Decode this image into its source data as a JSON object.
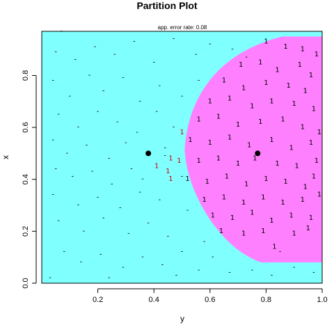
{
  "chart_data": {
    "type": "scatter",
    "title": "Partition Plot",
    "subtitle": "app. error rate: 0.08",
    "xlabel": "y",
    "ylabel": "x",
    "xlim": [
      0.0,
      1.0
    ],
    "ylim": [
      0.0,
      0.97
    ],
    "xticks": [
      0.2,
      0.4,
      0.6,
      0.8,
      1.0
    ],
    "xtick_labels": [
      "0.2",
      "0.4",
      "0.6",
      "0.8",
      "1.0"
    ],
    "yticks": [
      0.0,
      0.2,
      0.4,
      0.6,
      0.8
    ],
    "ytick_labels": [
      "0.0",
      "0.2",
      "0.4",
      "0.6",
      "0.8"
    ],
    "grid": false,
    "legend": "none",
    "regions": [
      {
        "class": "-",
        "color": "#80ffff"
      },
      {
        "class": "1",
        "color": "#ff80ff"
      }
    ],
    "class_one_region_bounds": {
      "y_min": 0.51,
      "y_max": 1.0,
      "x_min": 0.08,
      "x_max": 0.95
    },
    "class_means": [
      {
        "class": "-",
        "y": 0.38,
        "x": 0.5
      },
      {
        "class": "1",
        "y": 0.77,
        "x": 0.5
      }
    ],
    "misclassified_color": "#cc0000",
    "points": [
      {
        "y": 0.07,
        "x": 0.97,
        "c": "-"
      },
      {
        "y": 0.05,
        "x": 0.89,
        "c": "-"
      },
      {
        "y": 0.12,
        "x": 0.86,
        "c": "-"
      },
      {
        "y": 0.19,
        "x": 0.91,
        "c": "-"
      },
      {
        "y": 0.26,
        "x": 0.88,
        "c": "-"
      },
      {
        "y": 0.33,
        "x": 0.93,
        "c": "-"
      },
      {
        "y": 0.4,
        "x": 0.85,
        "c": "-"
      },
      {
        "y": 0.47,
        "x": 0.94,
        "c": "-"
      },
      {
        "y": 0.55,
        "x": 0.88,
        "c": "-"
      },
      {
        "y": 0.6,
        "x": 0.92,
        "c": "-"
      },
      {
        "y": 0.68,
        "x": 0.9,
        "c": "-"
      },
      {
        "y": 0.73,
        "x": 0.87,
        "c": "-"
      },
      {
        "y": 0.04,
        "x": 0.78,
        "c": "-"
      },
      {
        "y": 0.1,
        "x": 0.72,
        "c": "-"
      },
      {
        "y": 0.17,
        "x": 0.8,
        "c": "-"
      },
      {
        "y": 0.22,
        "x": 0.74,
        "c": "-"
      },
      {
        "y": 0.29,
        "x": 0.79,
        "c": "-"
      },
      {
        "y": 0.35,
        "x": 0.7,
        "c": "-"
      },
      {
        "y": 0.42,
        "x": 0.76,
        "c": "-"
      },
      {
        "y": 0.5,
        "x": 0.72,
        "c": "-"
      },
      {
        "y": 0.56,
        "x": 0.78,
        "c": "-"
      },
      {
        "y": 0.06,
        "x": 0.65,
        "c": "-"
      },
      {
        "y": 0.13,
        "x": 0.6,
        "c": "-"
      },
      {
        "y": 0.2,
        "x": 0.66,
        "c": "-"
      },
      {
        "y": 0.27,
        "x": 0.62,
        "c": "-"
      },
      {
        "y": 0.34,
        "x": 0.58,
        "c": "-"
      },
      {
        "y": 0.41,
        "x": 0.66,
        "c": "-"
      },
      {
        "y": 0.47,
        "x": 0.6,
        "c": "-"
      },
      {
        "y": 0.04,
        "x": 0.55,
        "c": "-"
      },
      {
        "y": 0.09,
        "x": 0.5,
        "c": "-"
      },
      {
        "y": 0.16,
        "x": 0.53,
        "c": "-"
      },
      {
        "y": 0.24,
        "x": 0.48,
        "c": "-"
      },
      {
        "y": 0.3,
        "x": 0.54,
        "c": "-"
      },
      {
        "y": 0.44,
        "x": 0.52,
        "c": "-"
      },
      {
        "y": 0.05,
        "x": 0.44,
        "c": "-"
      },
      {
        "y": 0.11,
        "x": 0.41,
        "c": "-"
      },
      {
        "y": 0.18,
        "x": 0.43,
        "c": "-"
      },
      {
        "y": 0.25,
        "x": 0.38,
        "c": "-"
      },
      {
        "y": 0.32,
        "x": 0.44,
        "c": "-"
      },
      {
        "y": 0.36,
        "x": 0.4,
        "c": "-"
      },
      {
        "y": 0.04,
        "x": 0.34,
        "c": "-"
      },
      {
        "y": 0.13,
        "x": 0.3,
        "c": "-"
      },
      {
        "y": 0.2,
        "x": 0.33,
        "c": "-"
      },
      {
        "y": 0.28,
        "x": 0.29,
        "c": "-"
      },
      {
        "y": 0.35,
        "x": 0.35,
        "c": "-"
      },
      {
        "y": 0.42,
        "x": 0.32,
        "c": "-"
      },
      {
        "y": 0.06,
        "x": 0.24,
        "c": "-"
      },
      {
        "y": 0.15,
        "x": 0.2,
        "c": "-"
      },
      {
        "y": 0.22,
        "x": 0.25,
        "c": "-"
      },
      {
        "y": 0.31,
        "x": 0.19,
        "c": "-"
      },
      {
        "y": 0.38,
        "x": 0.23,
        "c": "-"
      },
      {
        "y": 0.45,
        "x": 0.18,
        "c": "-"
      },
      {
        "y": 0.08,
        "x": 0.12,
        "c": "-"
      },
      {
        "y": 0.14,
        "x": 0.08,
        "c": "-"
      },
      {
        "y": 0.21,
        "x": 0.11,
        "c": "-"
      },
      {
        "y": 0.29,
        "x": 0.06,
        "c": "-"
      },
      {
        "y": 0.36,
        "x": 0.1,
        "c": "-"
      },
      {
        "y": 0.43,
        "x": 0.07,
        "c": "-"
      },
      {
        "y": 0.5,
        "x": 0.12,
        "c": "-"
      },
      {
        "y": 0.56,
        "x": 0.05,
        "c": "-"
      },
      {
        "y": 0.61,
        "x": 0.1,
        "c": "-"
      },
      {
        "y": 0.67,
        "x": 0.04,
        "c": "-"
      },
      {
        "y": 0.75,
        "x": 0.05,
        "c": "-"
      },
      {
        "y": 0.82,
        "x": 0.03,
        "c": "-"
      },
      {
        "y": 0.9,
        "x": 0.06,
        "c": "-"
      },
      {
        "y": 0.97,
        "x": 0.04,
        "c": "-"
      },
      {
        "y": 0.03,
        "x": 0.02,
        "c": "-"
      },
      {
        "y": 0.24,
        "x": 0.02,
        "c": "-"
      },
      {
        "y": 0.48,
        "x": 0.03,
        "c": "-"
      },
      {
        "y": 0.58,
        "x": 0.16,
        "c": "-"
      },
      {
        "y": 0.52,
        "x": 0.28,
        "c": "-"
      },
      {
        "y": 0.85,
        "x": 0.12,
        "c": "-"
      },
      {
        "y": 0.44,
        "x": 0.49,
        "c": "-"
      },
      {
        "y": 0.5,
        "x": 0.41,
        "c": "-"
      },
      {
        "y": 0.5,
        "x": 0.58,
        "c": "1",
        "err": true
      },
      {
        "y": 0.41,
        "x": 0.45,
        "c": "1",
        "err": true
      },
      {
        "y": 0.46,
        "x": 0.48,
        "c": "1",
        "err": true
      },
      {
        "y": 0.45,
        "x": 0.43,
        "c": "1",
        "err": true
      },
      {
        "y": 0.46,
        "x": 0.4,
        "c": "1",
        "err": true
      },
      {
        "y": 0.49,
        "x": 0.47,
        "c": "1",
        "err": true
      },
      {
        "y": 0.8,
        "x": 0.93,
        "c": "1"
      },
      {
        "y": 0.87,
        "x": 0.91,
        "c": "1"
      },
      {
        "y": 0.93,
        "x": 0.9,
        "c": "1"
      },
      {
        "y": 0.98,
        "x": 0.88,
        "c": "1"
      },
      {
        "y": 0.71,
        "x": 0.84,
        "c": "1"
      },
      {
        "y": 0.78,
        "x": 0.85,
        "c": "1"
      },
      {
        "y": 0.84,
        "x": 0.82,
        "c": "1"
      },
      {
        "y": 0.92,
        "x": 0.84,
        "c": "1"
      },
      {
        "y": 0.96,
        "x": 0.8,
        "c": "1"
      },
      {
        "y": 0.65,
        "x": 0.78,
        "c": "1"
      },
      {
        "y": 0.72,
        "x": 0.75,
        "c": "1"
      },
      {
        "y": 0.8,
        "x": 0.77,
        "c": "1"
      },
      {
        "y": 0.88,
        "x": 0.76,
        "c": "1"
      },
      {
        "y": 0.94,
        "x": 0.74,
        "c": "1"
      },
      {
        "y": 0.6,
        "x": 0.7,
        "c": "1"
      },
      {
        "y": 0.67,
        "x": 0.71,
        "c": "1"
      },
      {
        "y": 0.75,
        "x": 0.68,
        "c": "1"
      },
      {
        "y": 0.82,
        "x": 0.7,
        "c": "1"
      },
      {
        "y": 0.9,
        "x": 0.69,
        "c": "1"
      },
      {
        "y": 0.97,
        "x": 0.67,
        "c": "1"
      },
      {
        "y": 0.56,
        "x": 0.63,
        "c": "1"
      },
      {
        "y": 0.63,
        "x": 0.64,
        "c": "1"
      },
      {
        "y": 0.7,
        "x": 0.61,
        "c": "1"
      },
      {
        "y": 0.78,
        "x": 0.62,
        "c": "1"
      },
      {
        "y": 0.86,
        "x": 0.63,
        "c": "1"
      },
      {
        "y": 0.93,
        "x": 0.6,
        "c": "1"
      },
      {
        "y": 0.53,
        "x": 0.55,
        "c": "1"
      },
      {
        "y": 0.6,
        "x": 0.54,
        "c": "1"
      },
      {
        "y": 0.67,
        "x": 0.56,
        "c": "1"
      },
      {
        "y": 0.74,
        "x": 0.53,
        "c": "1"
      },
      {
        "y": 0.82,
        "x": 0.55,
        "c": "1"
      },
      {
        "y": 0.89,
        "x": 0.52,
        "c": "1"
      },
      {
        "y": 0.96,
        "x": 0.54,
        "c": "1"
      },
      {
        "y": 0.56,
        "x": 0.47,
        "c": "1"
      },
      {
        "y": 0.63,
        "x": 0.48,
        "c": "1"
      },
      {
        "y": 0.7,
        "x": 0.46,
        "c": "1"
      },
      {
        "y": 0.76,
        "x": 0.48,
        "c": "1"
      },
      {
        "y": 0.84,
        "x": 0.46,
        "c": "1"
      },
      {
        "y": 0.91,
        "x": 0.45,
        "c": "1"
      },
      {
        "y": 0.98,
        "x": 0.47,
        "c": "1"
      },
      {
        "y": 0.52,
        "x": 0.4,
        "c": "1"
      },
      {
        "y": 0.59,
        "x": 0.39,
        "c": "1"
      },
      {
        "y": 0.66,
        "x": 0.41,
        "c": "1"
      },
      {
        "y": 0.73,
        "x": 0.38,
        "c": "1"
      },
      {
        "y": 0.8,
        "x": 0.4,
        "c": "1"
      },
      {
        "y": 0.87,
        "x": 0.39,
        "c": "1"
      },
      {
        "y": 0.94,
        "x": 0.37,
        "c": "1"
      },
      {
        "y": 0.58,
        "x": 0.32,
        "c": "1"
      },
      {
        "y": 0.65,
        "x": 0.33,
        "c": "1"
      },
      {
        "y": 0.72,
        "x": 0.31,
        "c": "1"
      },
      {
        "y": 0.79,
        "x": 0.33,
        "c": "1"
      },
      {
        "y": 0.86,
        "x": 0.31,
        "c": "1"
      },
      {
        "y": 0.93,
        "x": 0.32,
        "c": "1"
      },
      {
        "y": 0.99,
        "x": 0.34,
        "c": "1"
      },
      {
        "y": 0.61,
        "x": 0.26,
        "c": "1"
      },
      {
        "y": 0.68,
        "x": 0.25,
        "c": "1"
      },
      {
        "y": 0.75,
        "x": 0.27,
        "c": "1"
      },
      {
        "y": 0.82,
        "x": 0.24,
        "c": "1"
      },
      {
        "y": 0.89,
        "x": 0.26,
        "c": "1"
      },
      {
        "y": 0.96,
        "x": 0.25,
        "c": "1"
      },
      {
        "y": 0.72,
        "x": 0.19,
        "c": "1"
      },
      {
        "y": 0.79,
        "x": 0.2,
        "c": "1"
      },
      {
        "y": 0.9,
        "x": 0.19,
        "c": "1"
      },
      {
        "y": 0.83,
        "x": 0.14,
        "c": "1"
      },
      {
        "y": 0.95,
        "x": 0.21,
        "c": "1"
      },
      {
        "y": 0.64,
        "x": 0.2,
        "c": "1"
      },
      {
        "y": 0.97,
        "x": 0.41,
        "c": "1"
      },
      {
        "y": 0.99,
        "x": 0.58,
        "c": "1"
      }
    ]
  }
}
